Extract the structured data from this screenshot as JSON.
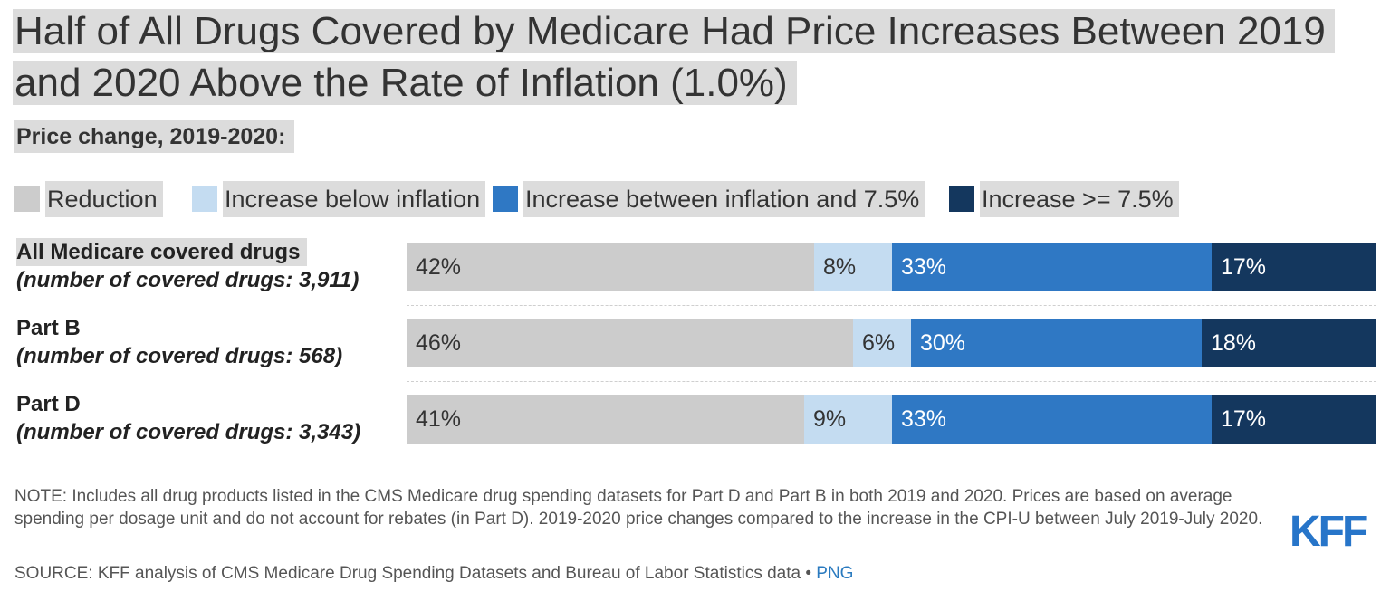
{
  "title": "Half of All Drugs Covered by Medicare Had Price Increases Between 2019 and 2020 Above the Rate of Inflation (1.0%)",
  "subtitle": "Price change, 2019-2020:",
  "colors": {
    "reduction": "#cccccc",
    "increase_below_inflation": "#c4dcf1",
    "increase_between": "#2f78c4",
    "increase_high": "#14375e",
    "highlight": "#dcdcdc",
    "logo": "#2775c9"
  },
  "chart_data": {
    "type": "bar",
    "orientation": "horizontal",
    "stacked": true,
    "categories": [
      {
        "label": "All Medicare covered drugs",
        "sublabel": "(number of covered drugs: 3,911)"
      },
      {
        "label": "Part B",
        "sublabel": "(number of covered drugs: 568)"
      },
      {
        "label": "Part D",
        "sublabel": "(number of covered drugs: 3,343)"
      }
    ],
    "series": [
      {
        "name": "Reduction",
        "values": [
          42,
          46,
          41
        ],
        "labels": [
          "42%",
          "46%",
          "41%"
        ],
        "color": "#cccccc",
        "text_color": "#333333"
      },
      {
        "name": "Increase below inflation",
        "values": [
          8,
          6,
          9
        ],
        "labels": [
          "8%",
          "6%",
          "9%"
        ],
        "color": "#c4dcf1",
        "text_color": "#333333"
      },
      {
        "name": "Increase between inflation and 7.5%",
        "values": [
          33,
          30,
          33
        ],
        "labels": [
          "33%",
          "30%",
          "33%"
        ],
        "color": "#2f78c4",
        "text_color": "#ffffff"
      },
      {
        "name": "Increase >= 7.5%",
        "values": [
          17,
          18,
          17
        ],
        "labels": [
          "17%",
          "18%",
          "17%"
        ],
        "color": "#14375e",
        "text_color": "#ffffff"
      }
    ],
    "xlim": [
      0,
      100
    ],
    "legend_position": "top-left",
    "grid": false
  },
  "note": "NOTE: Includes all drug products listed in the CMS Medicare drug spending datasets for Part D and Part B in both 2019 and 2020. Prices are based on average spending per dosage unit and do not account for rebates (in Part D). 2019-2020 price changes compared to the increase in the CPI-U between July 2019-July 2020.",
  "source": {
    "text": "SOURCE: KFF analysis of CMS Medicare Drug Spending Datasets and Bureau of Labor Statistics data • ",
    "link": "PNG"
  },
  "logo": {
    "text": "KFF",
    "icon": "kff-logo"
  }
}
